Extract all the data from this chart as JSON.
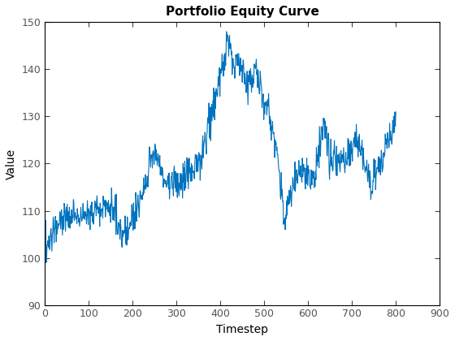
{
  "title": "Portfolio Equity Curve",
  "xlabel": "Timestep",
  "ylabel": "Value",
  "xlim": [
    0,
    900
  ],
  "ylim": [
    90,
    150
  ],
  "xticks": [
    0,
    100,
    200,
    300,
    400,
    500,
    600,
    700,
    800,
    900
  ],
  "yticks": [
    90,
    100,
    110,
    120,
    130,
    140,
    150
  ],
  "line_color": "#0072BD",
  "line_width": 0.8,
  "figsize": [
    5.6,
    4.2
  ],
  "dpi": 100,
  "controls_t": [
    0,
    10,
    30,
    55,
    80,
    110,
    140,
    160,
    175,
    200,
    220,
    250,
    265,
    280,
    310,
    350,
    380,
    405,
    415,
    430,
    445,
    460,
    480,
    495,
    510,
    530,
    545,
    570,
    590,
    615,
    635,
    650,
    665,
    690,
    710,
    730,
    745,
    760,
    775,
    790,
    800
  ],
  "controls_v": [
    99.0,
    103.0,
    107.5,
    109.0,
    108.5,
    110.0,
    111.0,
    109.5,
    104.5,
    108.0,
    113.0,
    123.0,
    119.0,
    115.5,
    116.0,
    120.0,
    130.0,
    140.0,
    146.0,
    141.5,
    142.0,
    136.5,
    140.0,
    135.0,
    131.0,
    122.0,
    108.5,
    116.5,
    118.0,
    117.0,
    129.0,
    121.0,
    120.5,
    121.0,
    124.5,
    121.0,
    115.0,
    119.0,
    123.0,
    127.0,
    130.5
  ],
  "noise_scale": 1.8,
  "noise_seed": 137
}
